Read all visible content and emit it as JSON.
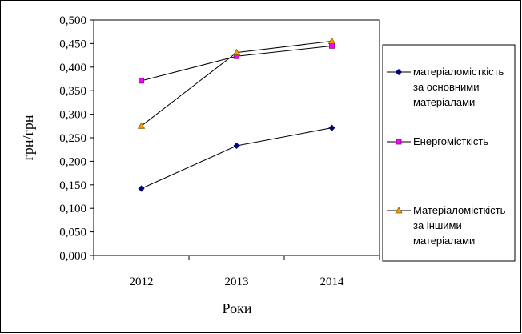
{
  "chart_data": {
    "type": "line",
    "x": [
      "2012",
      "2013",
      "2014"
    ],
    "xlabel": "Роки",
    "ylabel": "грн/грн",
    "ylim": [
      0,
      0.5
    ],
    "yticks": [
      "0,000",
      "0,050",
      "0,100",
      "0,150",
      "0,200",
      "0,250",
      "0,300",
      "0,350",
      "0,400",
      "0,450",
      "0,500"
    ],
    "grid": false,
    "legend_position": "right",
    "series": [
      {
        "name_lines": [
          "матеріаломісткість",
          "за основними",
          "матеріалами"
        ],
        "values": [
          0.142,
          0.233,
          0.271
        ],
        "color": "#000080",
        "marker": "diamond"
      },
      {
        "name_lines": [
          "Енергомісткість"
        ],
        "values": [
          0.371,
          0.423,
          0.445
        ],
        "color": "#ff00ff",
        "marker": "square"
      },
      {
        "name_lines": [
          "Матеріаломісткість",
          "за іншими",
          "матеріалами"
        ],
        "values": [
          0.275,
          0.431,
          0.455
        ],
        "color": "#ff9900",
        "marker": "triangle"
      }
    ]
  }
}
